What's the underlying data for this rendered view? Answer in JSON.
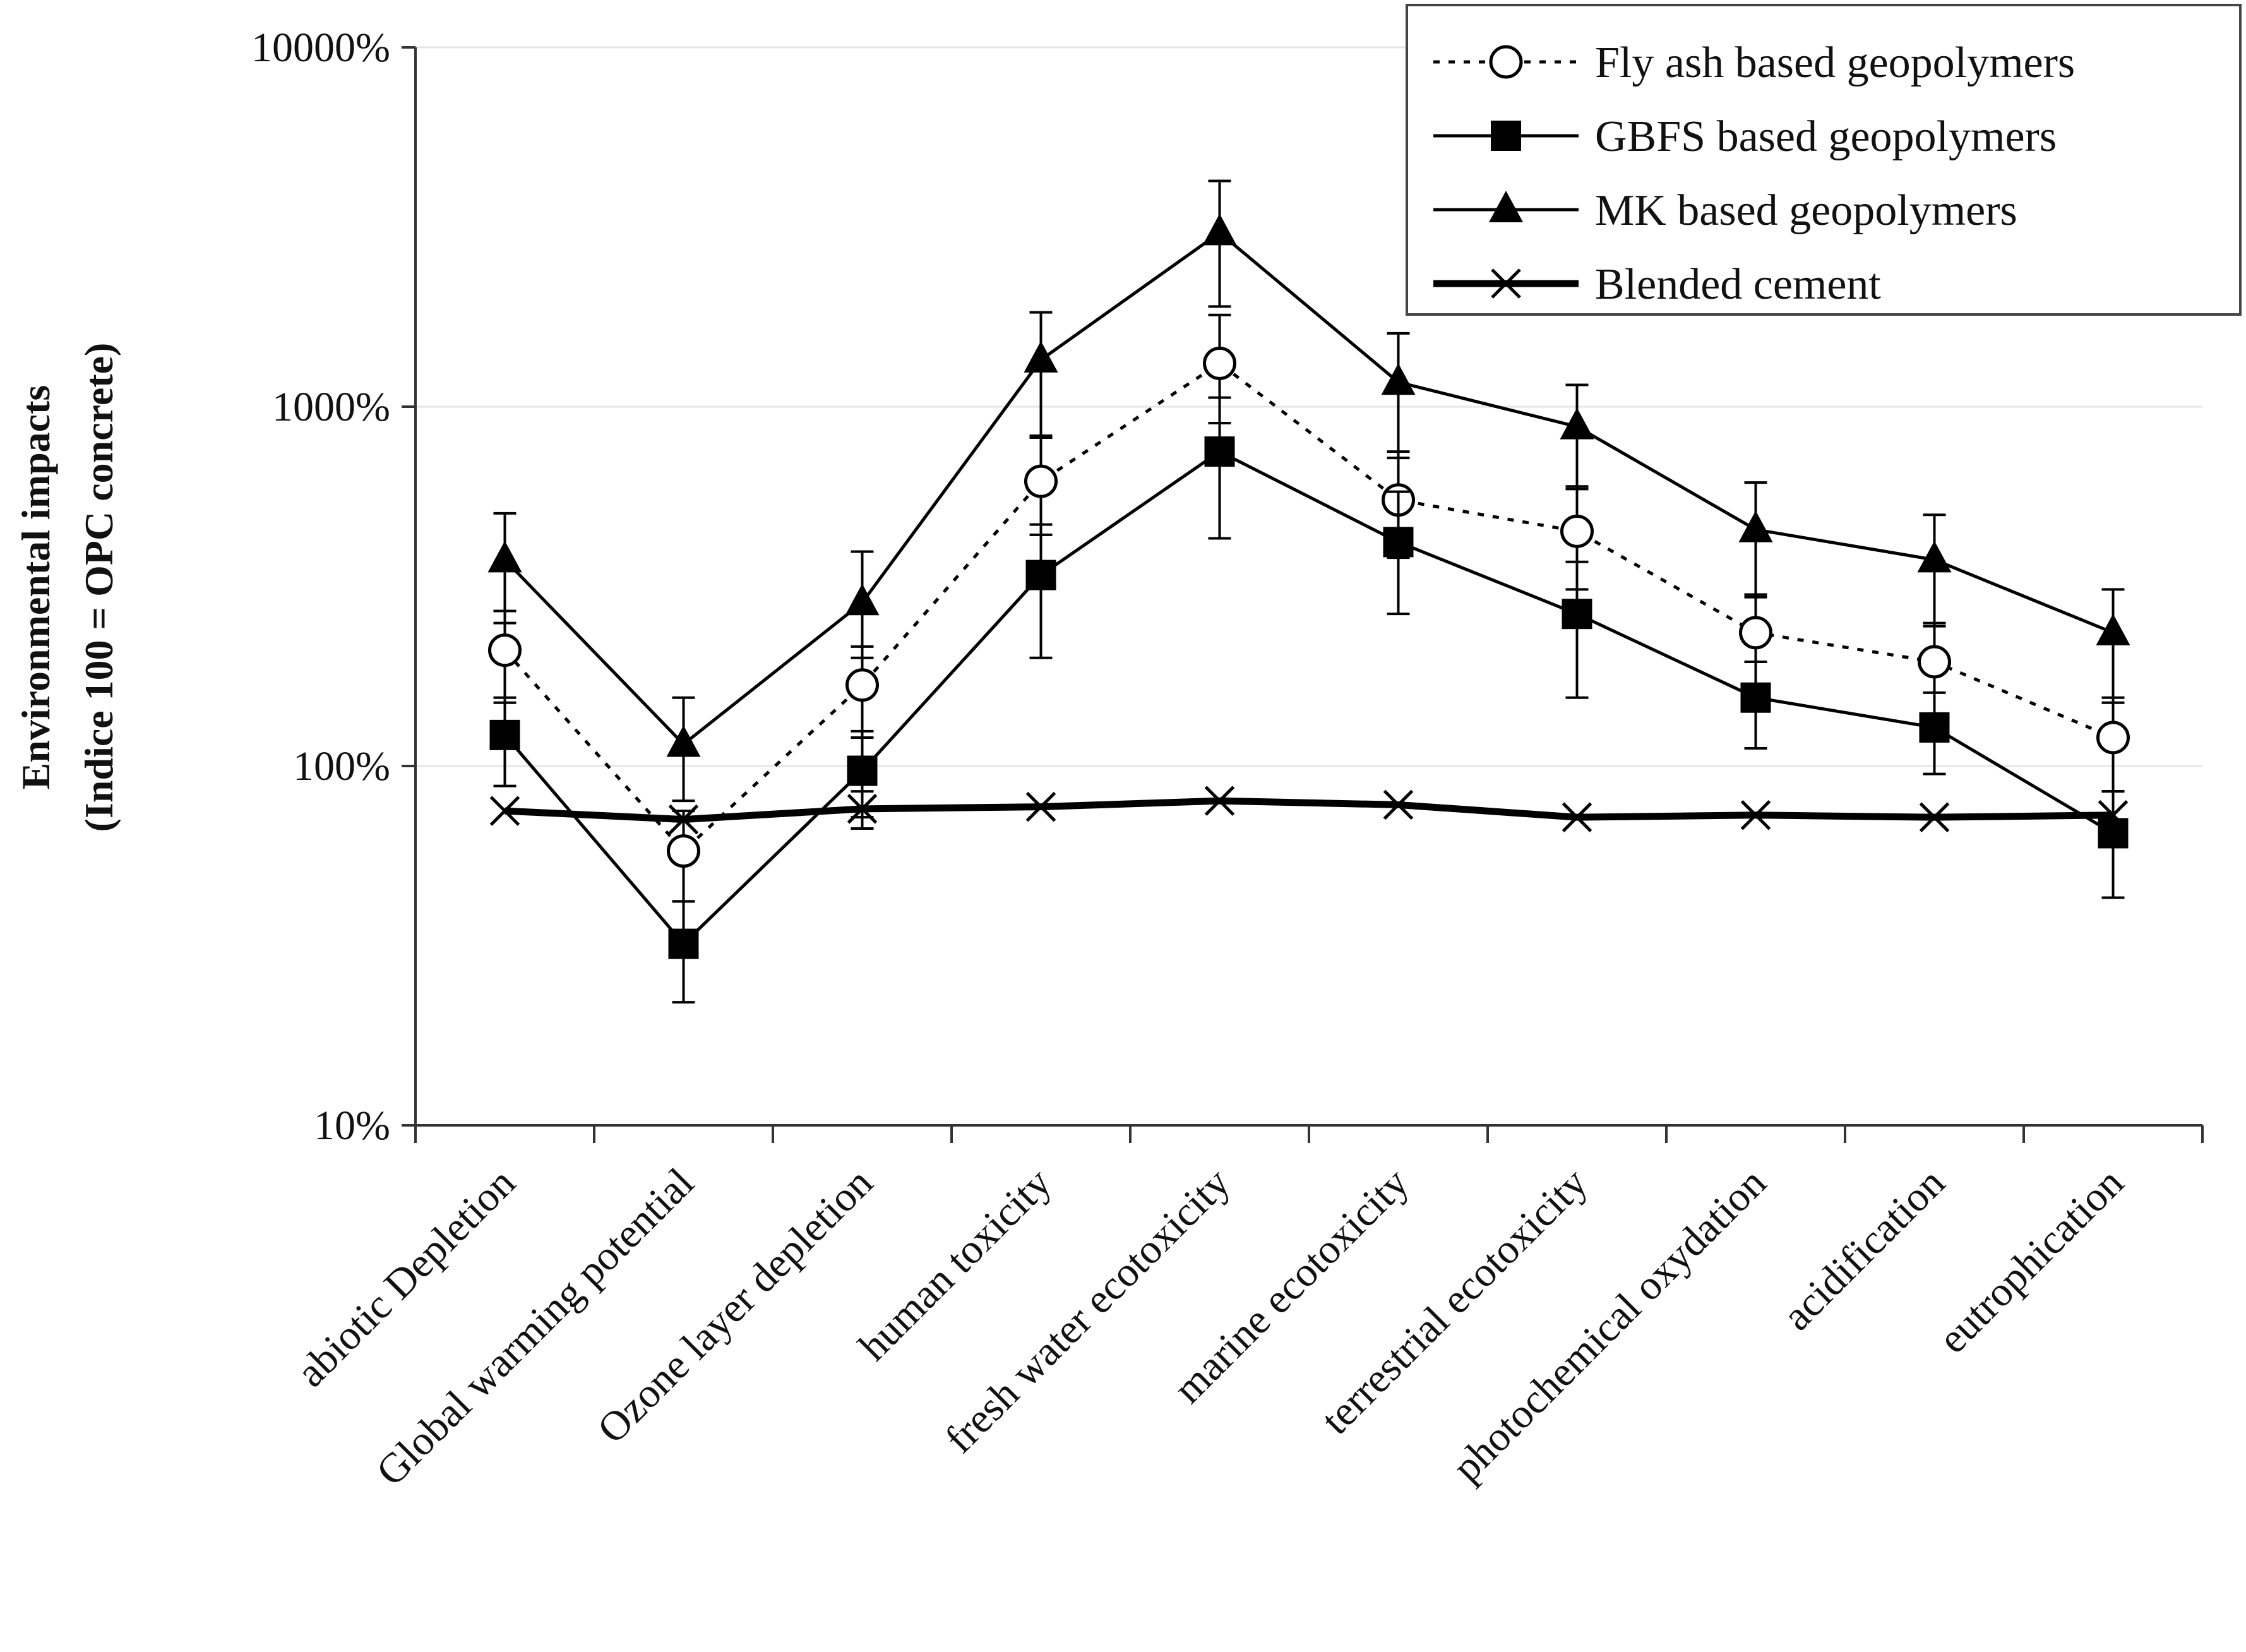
{
  "chart_data": {
    "type": "line",
    "title": "",
    "xlabel": "",
    "ylabel": [
      "Environmental impacts",
      "(Indice 100 = OPC concrete)"
    ],
    "yscale": "log",
    "ylim": [
      10,
      10000
    ],
    "yticks": [
      {
        "value": 10,
        "label": "10%"
      },
      {
        "value": 100,
        "label": "100%"
      },
      {
        "value": 1000,
        "label": "1000%"
      },
      {
        "value": 10000,
        "label": "10000%"
      }
    ],
    "grid": "horizontal major gridlines (light)",
    "legend": "top-right",
    "categories": [
      "abiotic Depletion",
      "Global warming potential",
      "Ozone layer depletion",
      "human toxicity",
      "fresh water ecotoxicity",
      "marine ecotoxicity",
      "terrestrial ecotoxicity",
      "photochemical oxydation",
      "acidification",
      "eutrophication"
    ],
    "series": [
      {
        "name": "Fly ash based geopolymers",
        "marker": "open-circle",
        "line": "dotted",
        "color": "#000000",
        "values": [
          210,
          58,
          168,
          620,
          1320,
          550,
          450,
          235,
          195,
          120
        ],
        "error_low": [
          150,
          42,
          120,
          440,
          900,
          380,
          310,
          165,
          140,
          85
        ],
        "error_high": [
          270,
          75,
          215,
          820,
          1800,
          750,
          600,
          300,
          250,
          155
        ]
      },
      {
        "name": "GBFS based geopolymers",
        "marker": "filled-square",
        "line": "solid",
        "color": "#000000",
        "values": [
          122,
          32,
          97,
          340,
          750,
          420,
          265,
          155,
          128,
          65
        ],
        "error_low": [
          88,
          22,
          72,
          200,
          430,
          265,
          155,
          112,
          95,
          43
        ],
        "error_high": [
          155,
          42,
          125,
          470,
          1060,
          580,
          370,
          195,
          160,
          85
        ]
      },
      {
        "name": "MK based geopolymers",
        "marker": "filled-triangle",
        "line": "solid",
        "color": "#000000",
        "values": [
          375,
          115,
          285,
          1350,
          3050,
          1170,
          880,
          455,
          375,
          235
        ],
        "error_low": [
          250,
          80,
          200,
          830,
          1900,
          720,
          590,
          295,
          245,
          150
        ],
        "error_high": [
          505,
          155,
          395,
          1830,
          4250,
          1600,
          1150,
          615,
          500,
          310
        ]
      },
      {
        "name": "Blended cement",
        "marker": "x-cross",
        "line": "solid-thick",
        "color": "#000000",
        "values": [
          75,
          71,
          76,
          77,
          80,
          78,
          72,
          73,
          72,
          73
        ],
        "error_low": [
          null,
          null,
          67,
          null,
          null,
          null,
          null,
          null,
          null,
          62
        ],
        "error_high": [
          null,
          null,
          85,
          null,
          null,
          null,
          null,
          null,
          null,
          85
        ]
      }
    ]
  }
}
